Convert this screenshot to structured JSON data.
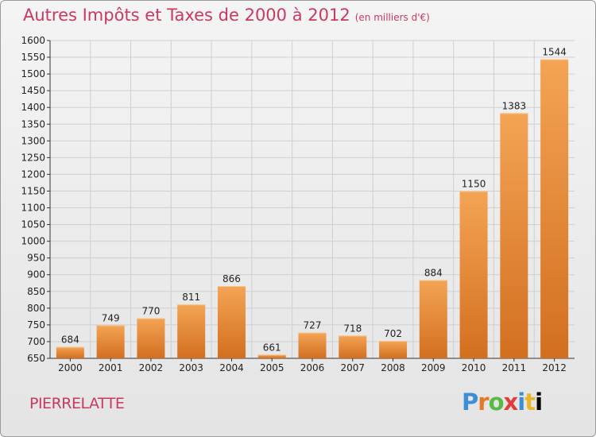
{
  "header": {
    "title": "Autres Impôts et Taxes de 2000 à 2012",
    "subtitle": "(en milliers d'€)"
  },
  "footer": {
    "city": "PIERRELATTE",
    "logo": [
      "P",
      "r",
      "o",
      "x",
      "i",
      "t",
      "i"
    ]
  },
  "colors": {
    "bar_top": "#f4a455",
    "bar_bottom": "#d26f1f",
    "title": "#c83a5e",
    "grid": "#cfcfcf"
  },
  "chart_data": {
    "type": "bar",
    "title": "Autres Impôts et Taxes de 2000 à 2012",
    "subtitle": "(en milliers d'€)",
    "xlabel": "",
    "ylabel": "",
    "categories": [
      "2000",
      "2001",
      "2002",
      "2003",
      "2004",
      "2005",
      "2006",
      "2007",
      "2008",
      "2009",
      "2010",
      "2011",
      "2012"
    ],
    "values": [
      684,
      749,
      770,
      811,
      866,
      661,
      727,
      718,
      702,
      884,
      1150,
      1383,
      1544
    ],
    "ylim": [
      650,
      1600
    ],
    "ytick_step": 50,
    "grid": true,
    "legend": "none"
  }
}
